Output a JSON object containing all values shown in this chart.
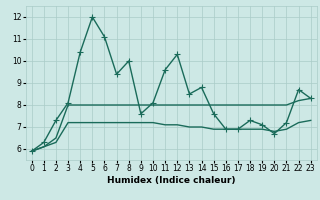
{
  "title": "",
  "xlabel": "Humidex (Indice chaleur)",
  "ylabel": "",
  "xlim": [
    -0.5,
    23.5
  ],
  "ylim": [
    5.5,
    12.5
  ],
  "yticks": [
    6,
    7,
    8,
    9,
    10,
    11,
    12
  ],
  "xticks": [
    0,
    1,
    2,
    3,
    4,
    5,
    6,
    7,
    8,
    9,
    10,
    11,
    12,
    13,
    14,
    15,
    16,
    17,
    18,
    19,
    20,
    21,
    22,
    23
  ],
  "bg_color": "#cde8e5",
  "line_color": "#1a6b5a",
  "grid_color": "#aaccc8",
  "line1_x": [
    0,
    1,
    2,
    3,
    4,
    5,
    6,
    7,
    8,
    9,
    10,
    11,
    12,
    13,
    14,
    15,
    16,
    17,
    18,
    19,
    20,
    21,
    22,
    23
  ],
  "line1_y": [
    5.9,
    6.3,
    7.3,
    8.1,
    10.4,
    12.0,
    11.1,
    9.4,
    10.0,
    7.6,
    8.1,
    9.6,
    10.3,
    8.5,
    8.8,
    7.6,
    6.9,
    6.9,
    7.3,
    7.1,
    6.7,
    7.2,
    8.7,
    8.3
  ],
  "line2_x": [
    0,
    1,
    2,
    3,
    4,
    5,
    6,
    7,
    8,
    9,
    10,
    11,
    12,
    13,
    14,
    15,
    16,
    17,
    18,
    19,
    20,
    21,
    22,
    23
  ],
  "line2_y": [
    5.9,
    6.1,
    6.5,
    8.0,
    8.0,
    8.0,
    8.0,
    8.0,
    8.0,
    8.0,
    8.0,
    8.0,
    8.0,
    8.0,
    8.0,
    8.0,
    8.0,
    8.0,
    8.0,
    8.0,
    8.0,
    8.0,
    8.2,
    8.3
  ],
  "line3_x": [
    0,
    1,
    2,
    3,
    4,
    5,
    6,
    7,
    8,
    9,
    10,
    11,
    12,
    13,
    14,
    15,
    16,
    17,
    18,
    19,
    20,
    21,
    22,
    23
  ],
  "line3_y": [
    5.9,
    6.1,
    6.3,
    7.2,
    7.2,
    7.2,
    7.2,
    7.2,
    7.2,
    7.2,
    7.2,
    7.1,
    7.1,
    7.0,
    7.0,
    6.9,
    6.9,
    6.9,
    6.9,
    6.9,
    6.8,
    6.9,
    7.2,
    7.3
  ],
  "marker": "+",
  "markersize": 4,
  "linewidth": 1.0,
  "tick_fontsize": 5.5,
  "xlabel_fontsize": 6.5
}
